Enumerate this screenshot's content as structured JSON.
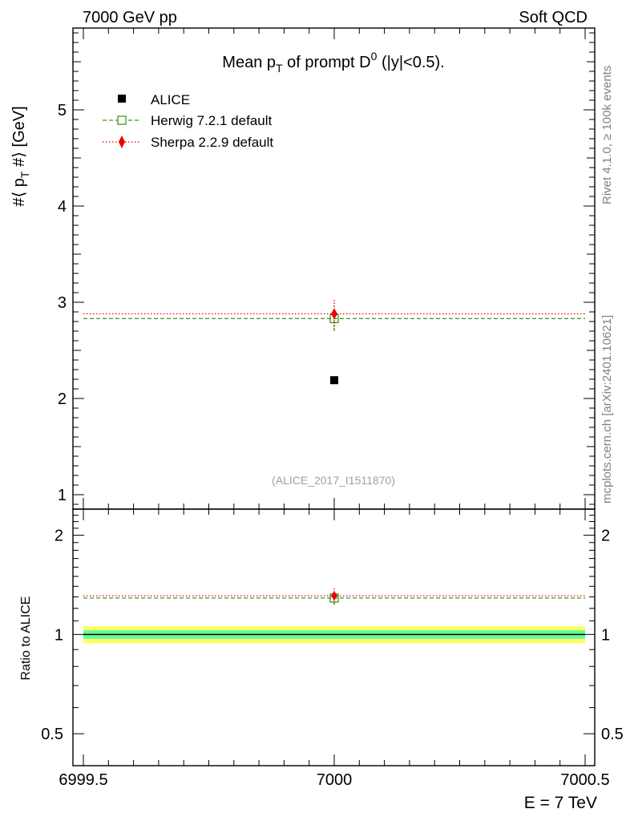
{
  "header": {
    "left": "7000 GeV pp",
    "right": "Soft QCD"
  },
  "side_labels": {
    "rivet": "Rivet 4.1.0, ≥ 100k events",
    "mcplots": "mcplots.cern.ch [arXiv:2401.10621]"
  },
  "colors": {
    "alice": "#000000",
    "herwig": "#3a9a1a",
    "sherpa": "#ee0000",
    "band_inner": "#66ff99",
    "band_outer": "#ffff66"
  },
  "chart_data": [
    {
      "type": "scatter",
      "panel": "main",
      "title_parts": {
        "pre": "Mean p",
        "sub": "T",
        "mid": " of prompt D",
        "sup": "0",
        "post": " (|y|<0.5)."
      },
      "ylabel_parts": {
        "pre": "#⟨ p",
        "sub": "T",
        "post": " #⟩ [GeV]"
      },
      "xlim": [
        6999.5,
        7000.5
      ],
      "ylim": [
        0.85,
        5.85
      ],
      "yticks": [
        1,
        2,
        3,
        4,
        5
      ],
      "ytick_labels": [
        "1",
        "2",
        "3",
        "4",
        "5"
      ],
      "reference": "(ALICE_2017_I1511870)",
      "legend_position": "top-left",
      "series": [
        {
          "name": "ALICE",
          "style": "marker",
          "x": [
            7000
          ],
          "y": [
            2.19
          ]
        },
        {
          "name": "Herwig 7.2.1 default",
          "style": "dashed-line-open-square",
          "x": [
            7000
          ],
          "y": [
            2.83
          ],
          "yerr": [
            0.13
          ],
          "xrange": [
            6999.5,
            7000.5
          ]
        },
        {
          "name": "Sherpa 2.2.9 default",
          "style": "dotted-line-diamond",
          "x": [
            7000
          ],
          "y": [
            2.88
          ],
          "yerr": [
            0.16
          ],
          "xrange": [
            6999.5,
            7000.5
          ]
        }
      ]
    },
    {
      "type": "scatter",
      "panel": "ratio",
      "ylabel": "Ratio to ALICE",
      "xlabel": "E = 7 TeV",
      "xlim": [
        6999.5,
        7000.5
      ],
      "ylim": [
        0.4,
        2.4
      ],
      "log_y": true,
      "yticks": [
        0.5,
        1,
        2
      ],
      "ytick_labels": [
        "0.5",
        "1",
        "2"
      ],
      "xticks": [
        6999.5,
        7000,
        7000.5
      ],
      "xtick_labels": [
        "6999.5",
        "7000",
        "7000.5"
      ],
      "reference_line": 1.0,
      "uncertainty_band": {
        "inner": [
          0.97,
          1.03
        ],
        "outer": [
          0.94,
          1.06
        ]
      },
      "series": [
        {
          "name": "Herwig 7.2.1 default",
          "x": [
            7000
          ],
          "y": [
            1.29
          ],
          "yerr": [
            0.06
          ]
        },
        {
          "name": "Sherpa 2.2.9 default",
          "x": [
            7000
          ],
          "y": [
            1.31
          ],
          "yerr": [
            0.07
          ]
        }
      ]
    }
  ]
}
